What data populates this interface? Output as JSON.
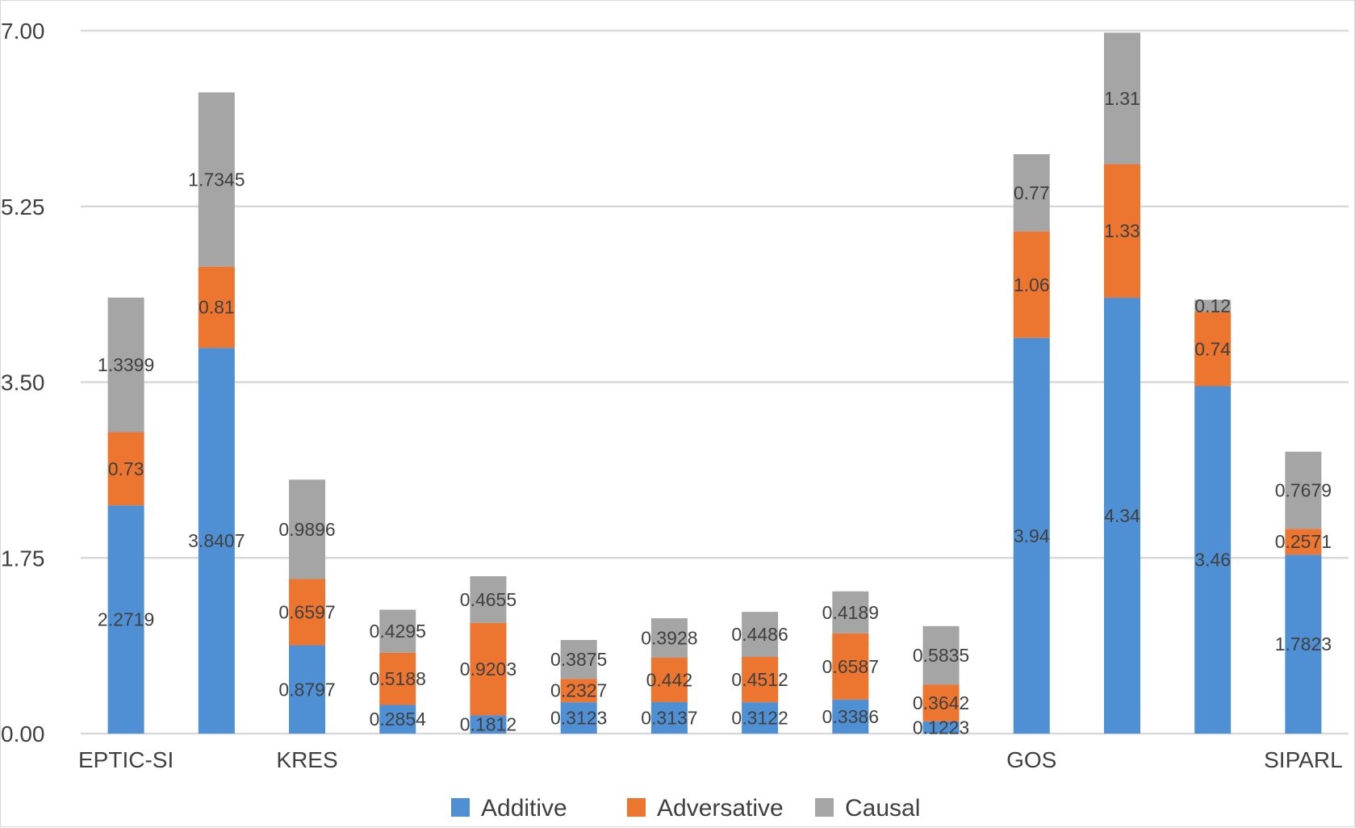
{
  "chart_data": {
    "type": "bar",
    "stacked": true,
    "title": "",
    "xlabel": "",
    "ylabel": "",
    "ylim": [
      0,
      7
    ],
    "yticks": [
      "0.00",
      "1.75",
      "3.50",
      "5.25",
      "7.00"
    ],
    "grid": true,
    "legend_position": "bottom",
    "categories": [
      "EPTIC-SI",
      "",
      "KRES",
      "",
      "",
      "",
      "",
      "",
      "",
      "",
      "GOS",
      "",
      "",
      "SIPARL"
    ],
    "series": [
      {
        "name": "Additive",
        "color": "#4f8fd3",
        "values": [
          2.2719,
          3.8407,
          0.8797,
          0.2854,
          0.1812,
          0.3123,
          0.3137,
          0.3122,
          0.3386,
          0.1223,
          3.94,
          4.34,
          3.46,
          1.7823
        ],
        "labels": [
          "2.2719",
          "3.8407",
          "0.8797",
          "0.2854",
          "0.1812",
          "0.3123",
          "0.3137",
          "0.3122",
          "0.3386",
          "0.1223",
          "3.94",
          "4.34",
          "3.46",
          "1.7823"
        ]
      },
      {
        "name": "Adversative",
        "color": "#ec7530",
        "values": [
          0.73,
          0.81,
          0.6597,
          0.5188,
          0.9203,
          0.2327,
          0.442,
          0.4512,
          0.6587,
          0.3642,
          1.06,
          1.33,
          0.74,
          0.2571
        ],
        "labels": [
          "0.73",
          "0.81",
          "0.6597",
          "0.5188",
          "0.9203",
          "0.2327",
          "0.442",
          "0.4512",
          "0.6587",
          "0.3642",
          "1.06",
          "1.33",
          "0.74",
          "0.2571"
        ]
      },
      {
        "name": "Causal",
        "color": "#a5a5a5",
        "values": [
          1.3399,
          1.7345,
          0.9896,
          0.4295,
          0.4655,
          0.3875,
          0.3928,
          0.4486,
          0.4189,
          0.5835,
          0.77,
          1.31,
          0.12,
          0.7679
        ],
        "labels": [
          "1.3399",
          "1.7345",
          "0.9896",
          "0.4295",
          "0.4655",
          "0.3875",
          "0.3928",
          "0.4486",
          "0.4189",
          "0.5835",
          "0.77",
          "1.31",
          "0.12",
          "0.7679"
        ]
      }
    ]
  }
}
